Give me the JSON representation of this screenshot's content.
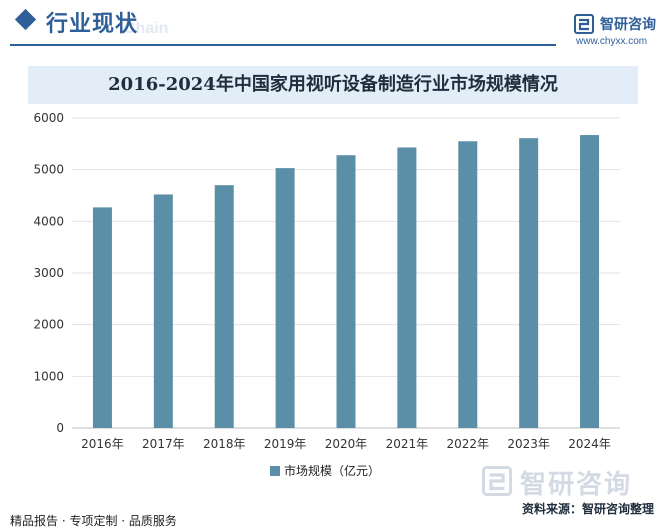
{
  "header": {
    "section_title": "行业现状",
    "section_ghost": "Chain",
    "brand_name": "智研咨询",
    "brand_url": "www.chyxx.com"
  },
  "watermark": {
    "logo_text": "智研咨询"
  },
  "footer": {
    "left": "精品报告 · 专项定制 · 品质服务",
    "source": "资料来源：智研咨询整理"
  },
  "colors": {
    "accent": "#2f5f99",
    "bar": "#5b8fa8",
    "title_bg": "#e3edf8"
  },
  "chart_data": {
    "type": "bar",
    "title": "2016-2024年中国家用视听设备制造行业市场规模情况",
    "categories": [
      "2016年",
      "2017年",
      "2018年",
      "2019年",
      "2020年",
      "2021年",
      "2022年",
      "2023年",
      "2024年"
    ],
    "series": [
      {
        "name": "市场规模（亿元）",
        "values": [
          4270,
          4520,
          4700,
          5030,
          5280,
          5430,
          5550,
          5610,
          5670
        ]
      }
    ],
    "ylim": [
      0,
      6000
    ],
    "yticks": [
      0,
      1000,
      2000,
      3000,
      4000,
      5000,
      6000
    ],
    "grid": true,
    "legend": "bottom"
  }
}
